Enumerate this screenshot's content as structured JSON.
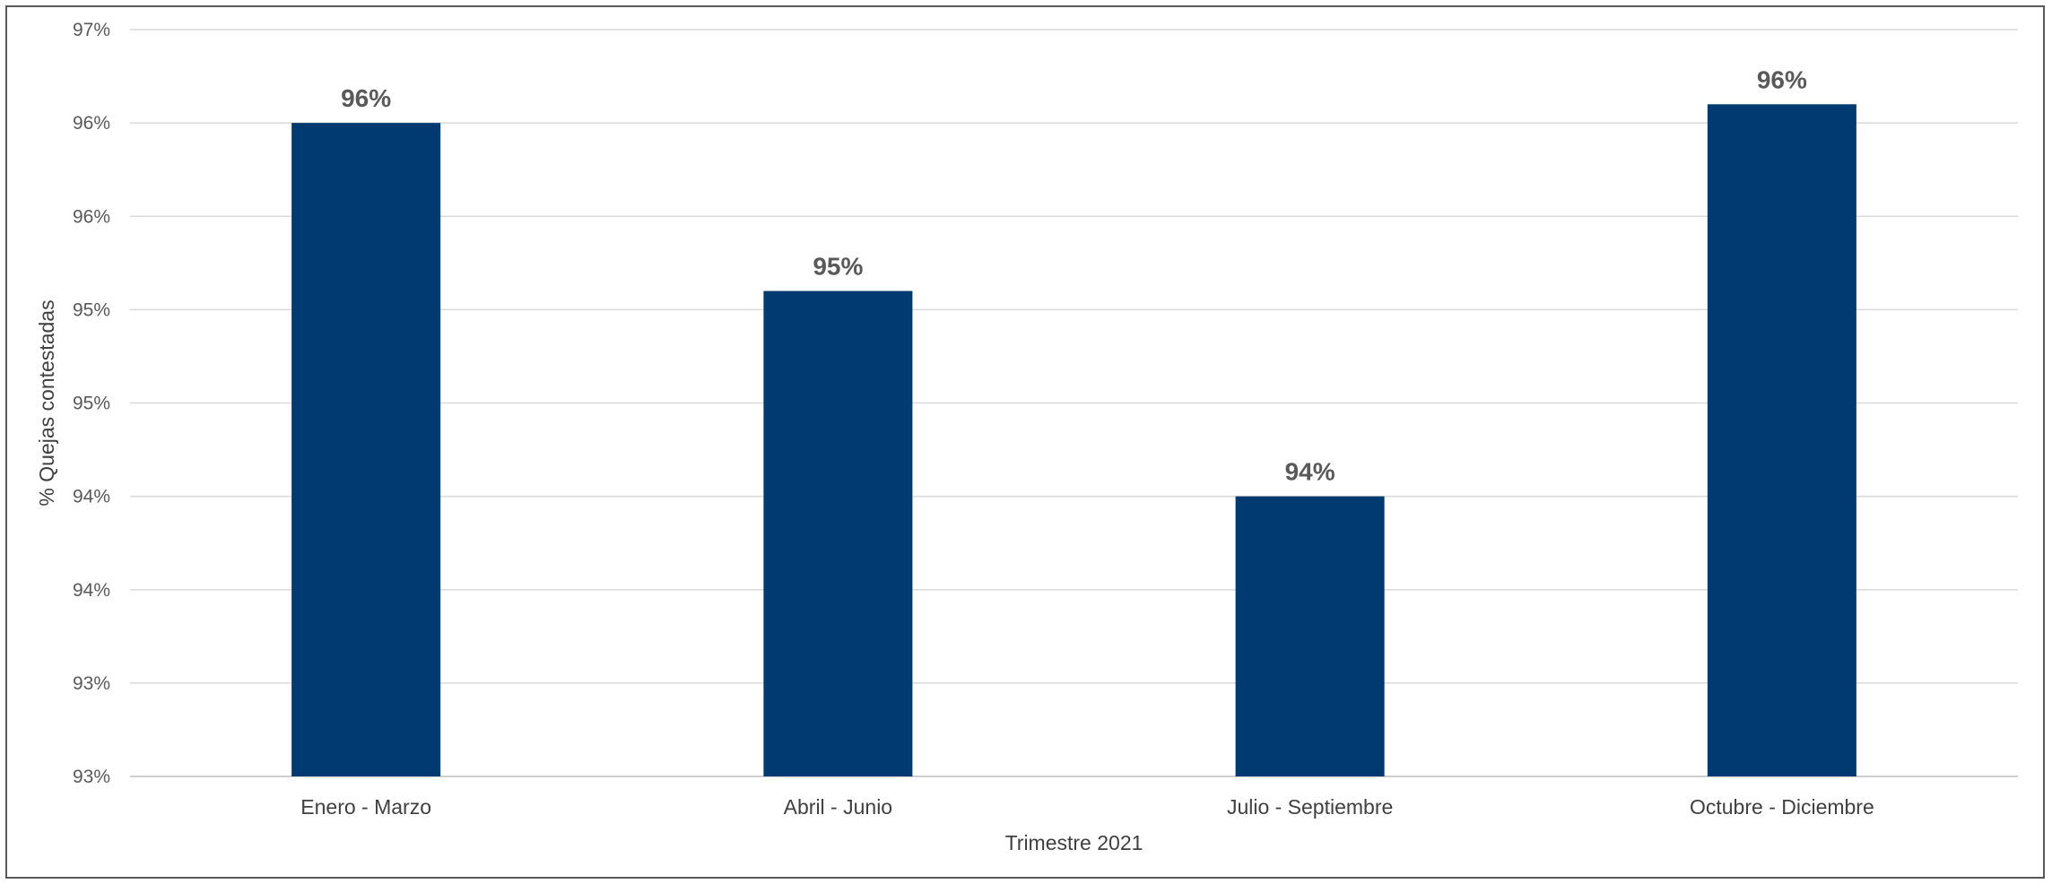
{
  "chart_data": {
    "type": "bar",
    "categories": [
      "Enero - Marzo",
      "Abril - Junio",
      "Julio - Septiembre",
      "Octubre - Diciembre"
    ],
    "series": [
      {
        "values": [
          96.0,
          95.1,
          94.0,
          96.1
        ],
        "data_labels": [
          "96%",
          "95%",
          "94%",
          "96%"
        ],
        "color": "#003a70"
      }
    ],
    "xlabel": "Trimestre 2021",
    "ylabel": "% Quejas contestadas",
    "ylim": [
      92.5,
      96.5
    ],
    "yticks": [
      92.5,
      93.0,
      93.5,
      94.0,
      94.5,
      95.0,
      95.5,
      96.0,
      96.5
    ],
    "ytick_labels": [
      "93%",
      "93%",
      "94%",
      "94%",
      "95%",
      "95%",
      "96%",
      "96%",
      "97%"
    ],
    "grid": true,
    "legend": "none"
  }
}
